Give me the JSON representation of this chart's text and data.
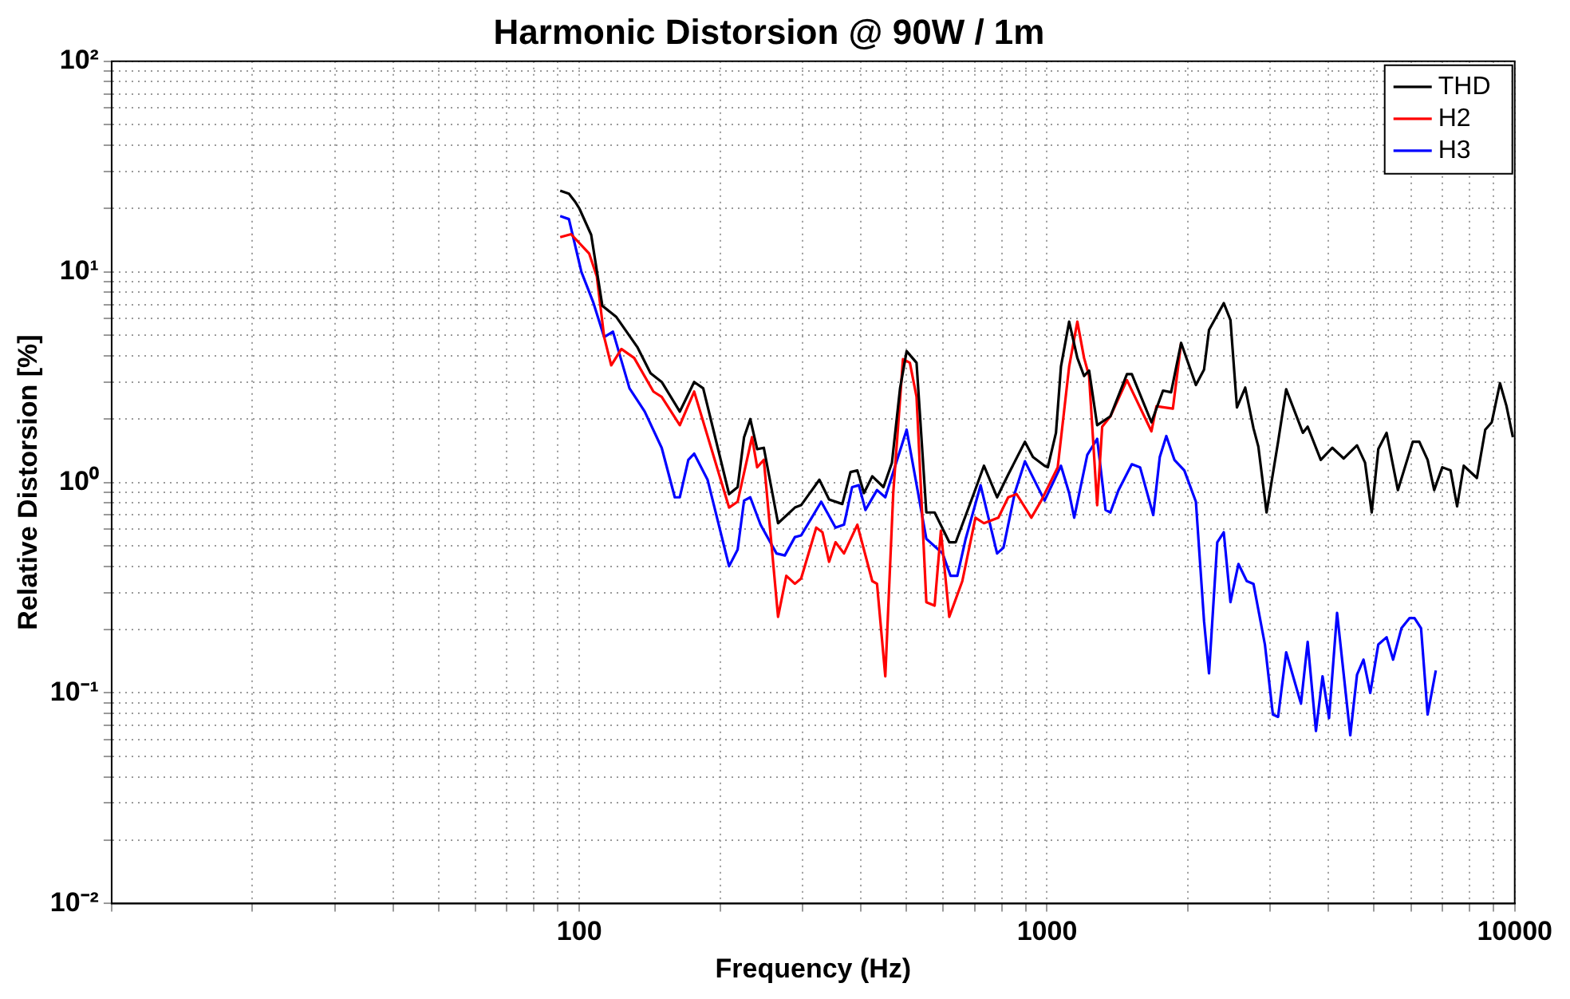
{
  "chart_data": {
    "type": "line",
    "title": "Harmonic Distorsion @ 90W / 1m",
    "xlabel": "Frequency (Hz)",
    "ylabel": "Relative Distorsion [%]",
    "log": "xy",
    "grid": true,
    "legend": "top right",
    "marker": "none",
    "line_style": "solid",
    "xlim": [
      10,
      10000
    ],
    "ylim": [
      0.01,
      100
    ],
    "xticks": [
      {
        "value": 10,
        "label": null
      },
      {
        "value": 20,
        "label": null
      },
      {
        "value": 30,
        "label": null
      },
      {
        "value": 40,
        "label": null
      },
      {
        "value": 50,
        "label": null
      },
      {
        "value": 60,
        "label": null
      },
      {
        "value": 70,
        "label": null
      },
      {
        "value": 80,
        "label": null
      },
      {
        "value": 90,
        "label": null
      },
      100,
      {
        "value": 200,
        "label": null
      },
      {
        "value": 300,
        "label": null
      },
      {
        "value": 400,
        "label": null
      },
      {
        "value": 500,
        "label": null
      },
      {
        "value": 600,
        "label": null
      },
      {
        "value": 700,
        "label": null
      },
      {
        "value": 800,
        "label": null
      },
      {
        "value": 900,
        "label": null
      },
      1000,
      {
        "value": 2000,
        "label": null
      },
      {
        "value": 3000,
        "label": null
      },
      {
        "value": 4000,
        "label": null
      },
      {
        "value": 5000,
        "label": null
      },
      {
        "value": 6000,
        "label": null
      },
      {
        "value": 7000,
        "label": null
      },
      {
        "value": 8000,
        "label": null
      },
      {
        "value": 9000,
        "label": null
      },
      10000
    ],
    "yticks": [
      {
        "value": 0.01,
        "label": "10⁻²"
      },
      {
        "value": 0.02,
        "label": null
      },
      {
        "value": 0.03,
        "label": null
      },
      {
        "value": 0.04,
        "label": null
      },
      {
        "value": 0.05,
        "label": null
      },
      {
        "value": 0.06,
        "label": null
      },
      {
        "value": 0.07,
        "label": null
      },
      {
        "value": 0.08,
        "label": null
      },
      {
        "value": 0.09,
        "label": null
      },
      {
        "value": 0.1,
        "label": "10⁻¹"
      },
      {
        "value": 0.2,
        "label": null
      },
      {
        "value": 0.3,
        "label": null
      },
      {
        "value": 0.4,
        "label": null
      },
      {
        "value": 0.5,
        "label": null
      },
      {
        "value": 0.6,
        "label": null
      },
      {
        "value": 0.7,
        "label": null
      },
      {
        "value": 0.8,
        "label": null
      },
      {
        "value": 0.9,
        "label": null
      },
      {
        "value": 1,
        "label": "10⁰"
      },
      {
        "value": 2,
        "label": null
      },
      {
        "value": 3,
        "label": null
      },
      {
        "value": 4,
        "label": null
      },
      {
        "value": 5,
        "label": null
      },
      {
        "value": 6,
        "label": null
      },
      {
        "value": 7,
        "label": null
      },
      {
        "value": 8,
        "label": null
      },
      {
        "value": 9,
        "label": null
      },
      {
        "value": 10,
        "label": "10¹"
      },
      {
        "value": 20,
        "label": null
      },
      {
        "value": 30,
        "label": null
      },
      {
        "value": 40,
        "label": null
      },
      {
        "value": 50,
        "label": null
      },
      {
        "value": 60,
        "label": null
      },
      {
        "value": 70,
        "label": null
      },
      {
        "value": 80,
        "label": null
      },
      {
        "value": 90,
        "label": null
      },
      {
        "value": 100,
        "label": "10²"
      }
    ],
    "series": [
      {
        "name": "THD",
        "color": "#000000",
        "x": [
          91,
          95,
          98,
          100,
          106,
          112,
          120,
          133,
          142,
          150,
          164,
          176,
          184,
          209,
          218,
          225,
          232,
          240,
          248,
          266,
          289,
          298,
          326,
          342,
          365,
          380,
          393,
          406,
          423,
          447,
          466,
          485,
          501,
          526,
          552,
          575,
          618,
          638,
          698,
          733,
          782,
          826,
          897,
          933,
          988,
          1004,
          1045,
          1071,
          1115,
          1161,
          1200,
          1230,
          1280,
          1366,
          1482,
          1518,
          1672,
          1770,
          1842,
          1935,
          2081,
          2166,
          2220,
          2387,
          2467,
          2547,
          2653,
          2763,
          2830,
          2947,
          3119,
          3246,
          3524,
          3608,
          3848,
          4074,
          4307,
          4600,
          4786,
          4945,
          5108,
          5321,
          5625,
          6053,
          6252,
          6513,
          6727,
          7000,
          7290,
          7530,
          7780,
          8300,
          8650,
          8930,
          9300,
          9600,
          9910
        ],
        "values": [
          24.3,
          23.5,
          21.5,
          20,
          15,
          6.9,
          6.1,
          4.4,
          3.3,
          3.0,
          2.17,
          3.0,
          2.8,
          0.88,
          0.95,
          1.64,
          2.0,
          1.44,
          1.46,
          0.64,
          0.76,
          0.78,
          1.03,
          0.83,
          0.79,
          1.12,
          1.14,
          0.89,
          1.07,
          0.95,
          1.24,
          2.8,
          4.2,
          3.7,
          0.72,
          0.72,
          0.52,
          0.52,
          0.89,
          1.2,
          0.85,
          1.09,
          1.56,
          1.32,
          1.2,
          1.18,
          1.72,
          3.55,
          5.8,
          3.9,
          3.2,
          3.4,
          1.87,
          2.06,
          3.27,
          3.27,
          1.93,
          2.73,
          2.68,
          4.6,
          2.9,
          3.43,
          5.3,
          7.1,
          5.9,
          2.27,
          2.82,
          1.81,
          1.48,
          0.72,
          1.56,
          2.77,
          1.72,
          1.84,
          1.28,
          1.46,
          1.3,
          1.5,
          1.24,
          0.72,
          1.44,
          1.72,
          0.92,
          1.56,
          1.56,
          1.28,
          0.92,
          1.18,
          1.14,
          0.77,
          1.2,
          1.05,
          1.78,
          1.93,
          2.96,
          2.31,
          1.64
        ]
      },
      {
        "name": "H2",
        "color": "#ff0000",
        "x": [
          91,
          96,
          105,
          109,
          113,
          117,
          123,
          131,
          144,
          150,
          164,
          176,
          209,
          218,
          234,
          240,
          248,
          266,
          277,
          289,
          298,
          321,
          331,
          342,
          353,
          368,
          393,
          423,
          433,
          451,
          469,
          492,
          509,
          526,
          552,
          575,
          593,
          618,
          659,
          703,
          733,
          787,
          826,
          861,
          926,
          972,
          1054,
          1115,
          1161,
          1200,
          1230,
          1280,
          1312,
          1366,
          1482,
          1672,
          1714,
          1858,
          1935
        ],
        "values": [
          14.6,
          15.1,
          12.2,
          9.5,
          4.9,
          3.6,
          4.3,
          3.9,
          2.7,
          2.55,
          1.87,
          2.7,
          0.76,
          0.81,
          1.64,
          1.18,
          1.28,
          0.23,
          0.36,
          0.33,
          0.35,
          0.61,
          0.58,
          0.42,
          0.52,
          0.46,
          0.63,
          0.34,
          0.33,
          0.12,
          0.89,
          3.85,
          3.7,
          2.55,
          0.27,
          0.26,
          0.59,
          0.23,
          0.34,
          0.68,
          0.64,
          0.68,
          0.85,
          0.88,
          0.68,
          0.82,
          1.18,
          3.55,
          5.8,
          3.9,
          3.2,
          0.78,
          1.84,
          2.06,
          3.06,
          1.75,
          2.3,
          2.24,
          4.6
        ]
      },
      {
        "name": "H3",
        "color": "#0000ff",
        "x": [
          91,
          95,
          101,
          107,
          113,
          118,
          128,
          138,
          150,
          160,
          164,
          171,
          176,
          188,
          209,
          218,
          225,
          232,
          244,
          264,
          275,
          289,
          298,
          329,
          353,
          368,
          383,
          396,
          409,
          433,
          451,
          501,
          552,
          598,
          622,
          643,
          670,
          721,
          782,
          807,
          853,
          897,
          988,
          1071,
          1115,
          1143,
          1219,
          1280,
          1334,
          1366,
          1422,
          1518,
          1581,
          1687,
          1742,
          1799,
          1872,
          1966,
          2081,
          2166,
          2220,
          2312,
          2387,
          2467,
          2566,
          2673,
          2763,
          2923,
          3040,
          3119,
          3246,
          3491,
          3608,
          3758,
          3882,
          4008,
          4170,
          4450,
          4600,
          4750,
          4910,
          5108,
          5321,
          5495,
          5725,
          5960,
          6105,
          6305,
          6513,
          6780
        ],
        "values": [
          18.4,
          17.8,
          10,
          7.2,
          4.9,
          5.2,
          2.8,
          2.17,
          1.46,
          0.85,
          0.85,
          1.28,
          1.37,
          1.03,
          0.4,
          0.48,
          0.82,
          0.85,
          0.63,
          0.46,
          0.45,
          0.55,
          0.56,
          0.81,
          0.61,
          0.63,
          0.95,
          0.97,
          0.74,
          0.92,
          0.85,
          1.78,
          0.54,
          0.46,
          0.36,
          0.36,
          0.54,
          0.97,
          0.46,
          0.49,
          0.89,
          1.26,
          0.82,
          1.2,
          0.89,
          0.68,
          1.35,
          1.61,
          0.74,
          0.72,
          0.92,
          1.22,
          1.18,
          0.7,
          1.32,
          1.66,
          1.28,
          1.14,
          0.81,
          0.22,
          0.124,
          0.52,
          0.58,
          0.27,
          0.41,
          0.34,
          0.33,
          0.17,
          0.079,
          0.077,
          0.156,
          0.089,
          0.175,
          0.066,
          0.12,
          0.076,
          0.24,
          0.063,
          0.122,
          0.144,
          0.1,
          0.17,
          0.184,
          0.144,
          0.203,
          0.227,
          0.227,
          0.203,
          0.079,
          0.128
        ]
      }
    ]
  }
}
